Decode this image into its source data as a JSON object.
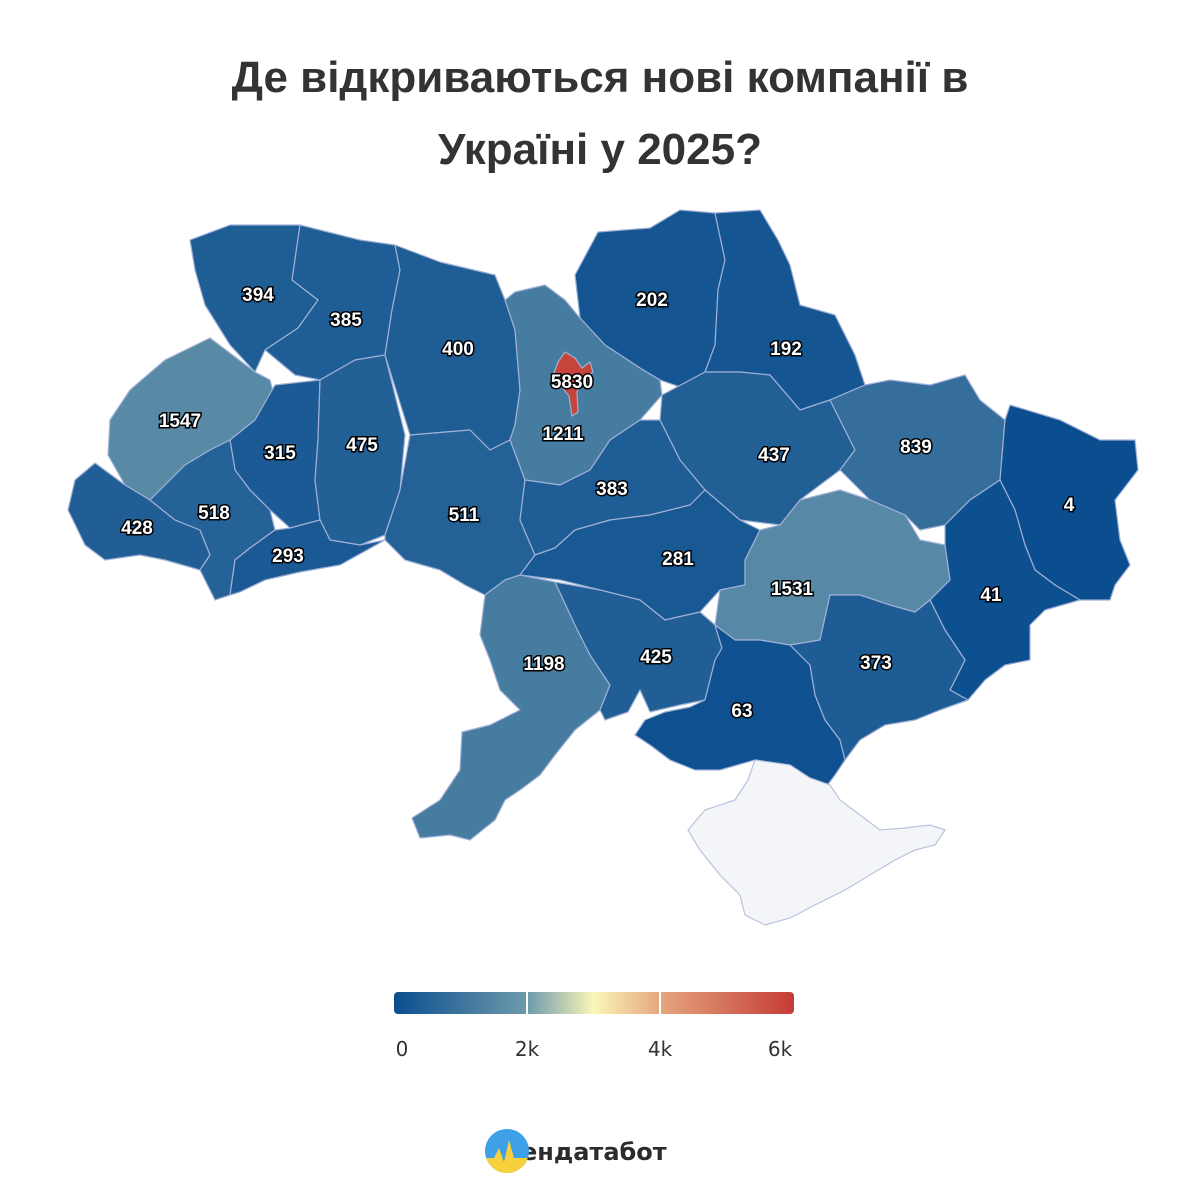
{
  "title_line1": "Де відкриваються нові компанії в",
  "title_line2": "Україні у 2025?",
  "colors": {
    "scale": [
      "#0b4e8f",
      "#6e9aac",
      "#fbf6b8",
      "#e5a57e",
      "#c43b36"
    ],
    "crimea": "#f4f5f8"
  },
  "regions": [
    {
      "id": "volyn",
      "value": "394"
    },
    {
      "id": "rivne",
      "value": "385"
    },
    {
      "id": "zhytomyr",
      "value": "400"
    },
    {
      "id": "chernihiv",
      "value": "202"
    },
    {
      "id": "sumy",
      "value": "192"
    },
    {
      "id": "lviv",
      "value": "1547"
    },
    {
      "id": "ternopil",
      "value": "315"
    },
    {
      "id": "khmelnytskyi",
      "value": "475"
    },
    {
      "id": "kyiv-city",
      "value": "5830"
    },
    {
      "id": "kyiv-oblast",
      "value": "1211"
    },
    {
      "id": "poltava",
      "value": "437"
    },
    {
      "id": "kharkiv",
      "value": "839"
    },
    {
      "id": "luhansk",
      "value": "4"
    },
    {
      "id": "zakarpattia",
      "value": "428"
    },
    {
      "id": "ivano-frankivsk",
      "value": "518"
    },
    {
      "id": "chernivtsi",
      "value": "293"
    },
    {
      "id": "vinnytsia",
      "value": "511"
    },
    {
      "id": "cherkasy",
      "value": "383"
    },
    {
      "id": "kirovohrad",
      "value": "281"
    },
    {
      "id": "dnipropetrovsk",
      "value": "1531"
    },
    {
      "id": "donetsk",
      "value": "41"
    },
    {
      "id": "odesa",
      "value": "1198"
    },
    {
      "id": "mykolaiv",
      "value": "425"
    },
    {
      "id": "kherson",
      "value": "63"
    },
    {
      "id": "zaporizhzhia",
      "value": "373"
    }
  ],
  "legend": {
    "min": 0,
    "max": 6000,
    "ticks": [
      "0",
      "2k",
      "4k",
      "6k"
    ]
  },
  "brand": {
    "name": "Опендатабот",
    "logo_icon": "opendatabot-logo-icon"
  }
}
